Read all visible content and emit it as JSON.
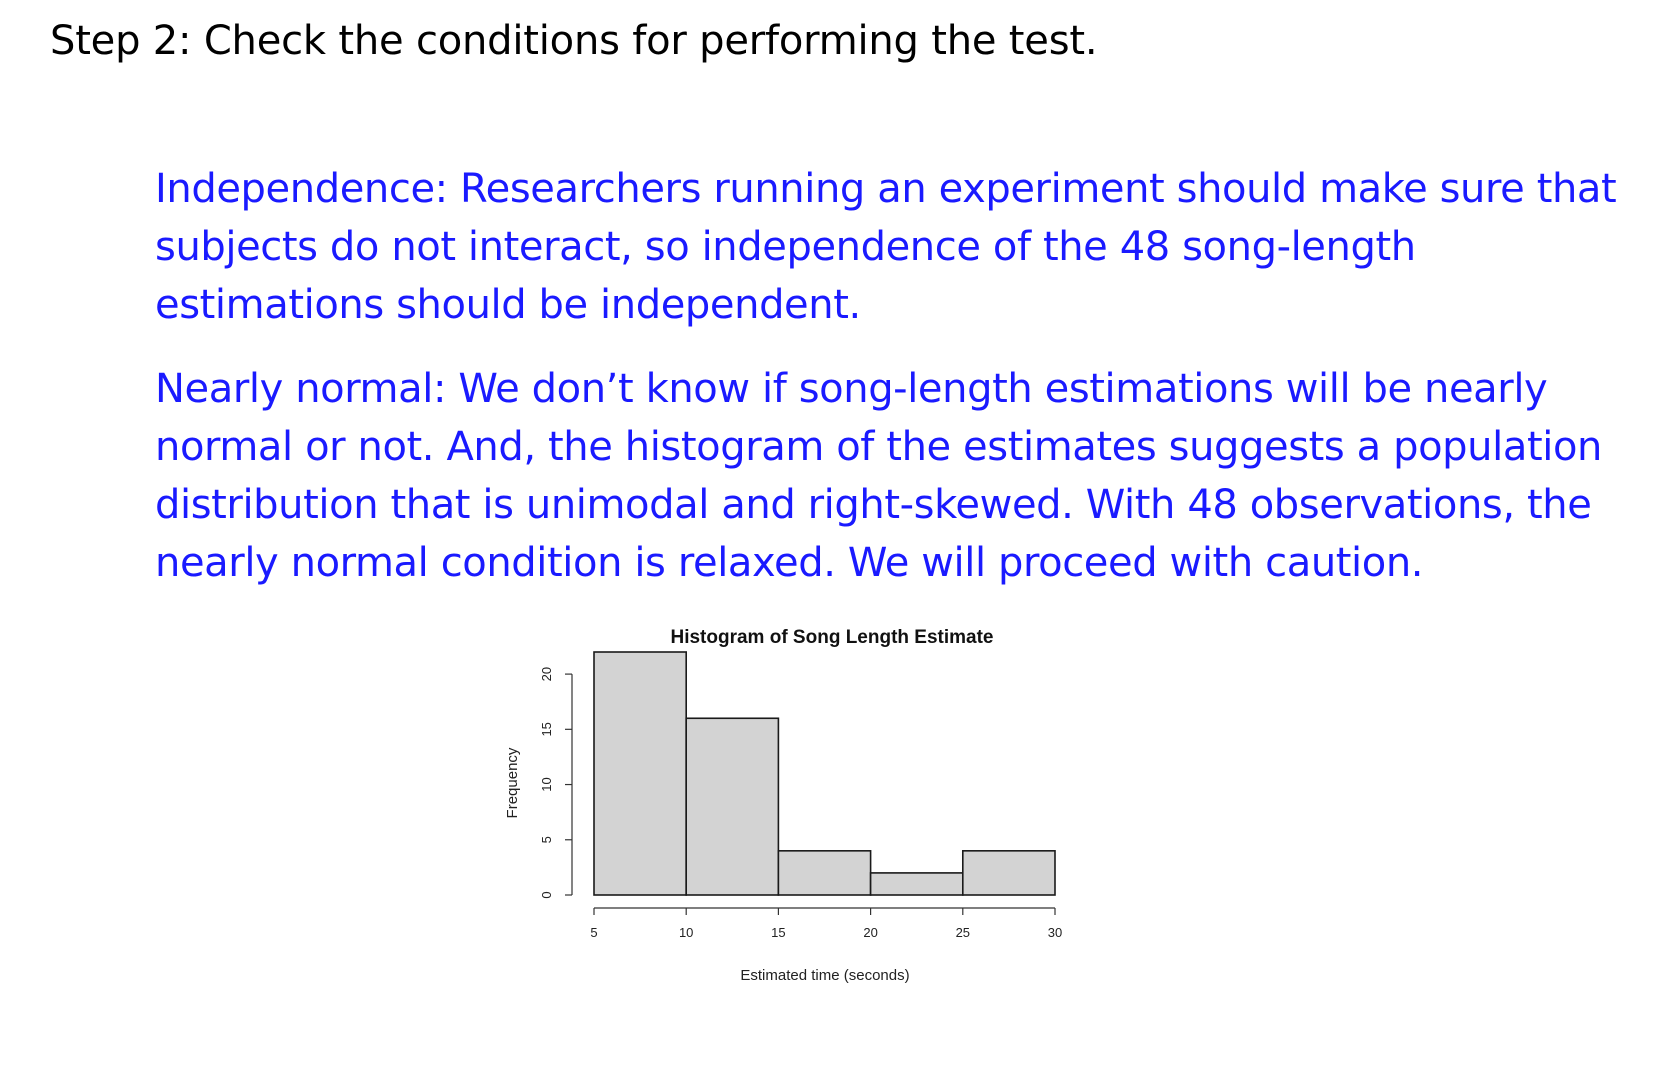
{
  "step": {
    "title": "Step 2:  Check the conditions for performing the test."
  },
  "independence": {
    "lines": [
      "Independence:  Researchers running an experiment should make sure that",
      "subjects do not interact, so independence of the 48 song-length",
      "estimations should be independent."
    ]
  },
  "nearly_normal": {
    "lines": [
      "Nearly normal:  We don’t know if song-length estimations will be nearly",
      "normal or not.  And, the histogram of the estimates suggests a population",
      "distribution that is unimodal and right-skewed.  With 48 observations, the",
      "nearly normal condition is relaxed.  We will proceed with caution."
    ]
  },
  "colors": {
    "body_text": "#1a1aff",
    "heading_text": "#000000",
    "bar_fill": "#d3d3d3",
    "bar_stroke": "#1a1a1a"
  },
  "chart_data": {
    "type": "bar",
    "title": "Histogram of Song Length Estimate",
    "xlabel": "Estimated time (seconds)",
    "ylabel": "Frequency",
    "bins": [
      {
        "from": 5,
        "to": 10,
        "count": 22
      },
      {
        "from": 10,
        "to": 15,
        "count": 16
      },
      {
        "from": 15,
        "to": 20,
        "count": 4
      },
      {
        "from": 20,
        "to": 25,
        "count": 2
      },
      {
        "from": 25,
        "to": 30,
        "count": 4
      }
    ],
    "xticks": [
      "5",
      "10",
      "15",
      "20",
      "25",
      "30"
    ],
    "yticks": [
      "0",
      "5",
      "10",
      "15",
      "20"
    ],
    "xlim": [
      5,
      30
    ],
    "ylim": [
      0,
      22
    ],
    "grid": false
  }
}
